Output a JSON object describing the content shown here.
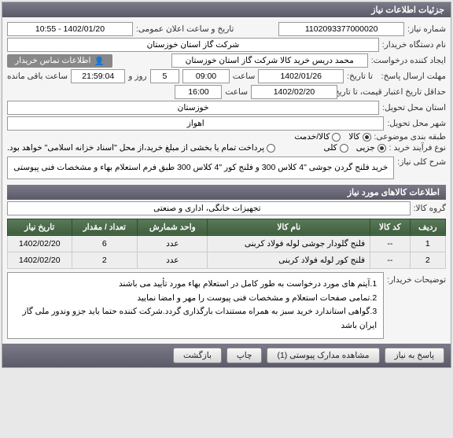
{
  "panel_title": "جزئیات اطلاعات نیاز",
  "labels": {
    "need_no": "شماره نیاز:",
    "ann_date": "تاریخ و ساعت اعلان عمومی:",
    "buyer_org": "نام دستگاه خریدار:",
    "req_creator": "ایجاد کننده درخواست:",
    "buyer_contact": "اطلاعات تماس خریدار",
    "deadline": "مهلت ارسال پاسخ:",
    "up_to": "تا تاریخ:",
    "time_word": "ساعت",
    "and_word": "و",
    "day_word": "روز",
    "remaining": "ساعت باقی مانده",
    "validity": "حداقل تاریخ اعتبار قیمت، تا تاریخ:",
    "province": "استان محل تحویل:",
    "city": "شهر محل تحویل:",
    "subject_class": "طبقه بندی موضوعی:",
    "purchase_type": "نوع فرآیند خرید :",
    "partial_note": "پرداخت تمام یا بخشی از مبلغ خرید،از محل \"اسناد خزانه اسلامی\" خواهد بود.",
    "general_desc": "شرح کلی نیاز:",
    "items_header": "اطلاعات کالاهای مورد نیاز",
    "goods_group": "گروه کالا:",
    "buyer_notes": "توضیحات خریدار:"
  },
  "fields": {
    "need_no": "1102093377000020",
    "ann_date": "1402/01/20 - 10:55",
    "buyer_org": "شرکت گاز استان خوزستان",
    "req_creator": "محمد دریس خرید کالا شرکت گاز استان خوزستان",
    "deadline_date": "1402/01/26",
    "deadline_time": "09:00",
    "days_left": "5",
    "hours_left": "21:59:04",
    "validity_date": "1402/02/20",
    "validity_time": "16:00",
    "province": "خوزستان",
    "city": "اهواز",
    "goods_group": "تجهیزات خانگی، اداری و صنعتی"
  },
  "subject_options": [
    {
      "label": "کالا",
      "checked": true
    },
    {
      "label": "کالا/خدمت",
      "checked": false
    }
  ],
  "purchase_options": [
    {
      "label": "جزیی",
      "checked": true
    },
    {
      "label": "کلی",
      "checked": false
    }
  ],
  "general_desc": "خرید فلنج گردن جوشی \"4 کلاس 300 و فلنج کور \"4 کلاس 300 طبق فرم استعلام بهاء و مشخصات فنی پیوستی",
  "table": {
    "headers": [
      "ردیف",
      "کد کالا",
      "نام کالا",
      "واحد شمارش",
      "تعداد / مقدار",
      "تاریخ نیاز"
    ],
    "rows": [
      [
        "1",
        "--",
        "فلنج گلودار جوشی لوله فولاد کربنی",
        "عدد",
        "6",
        "1402/02/20"
      ],
      [
        "2",
        "--",
        "فلنج کور لوله فولاد کربنی",
        "عدد",
        "2",
        "1402/02/20"
      ]
    ]
  },
  "buyer_notes": [
    "1.آیتم های مورد درخواست به طور کامل در استعلام بهاء مورد تأیید می باشند",
    "2.تمامی صفحات استعلام و مشخصات فنی پیوست را مهر و امضا نمایید",
    "3.گواهی استاندارد خرید سبز به همراه مستندات بارگذاری گردد.شرکت کننده حتما باید جزو وندور ملی گاز ایران باشد"
  ],
  "buttons": {
    "reply": "پاسخ به نیاز",
    "attachments": "مشاهده مدارک پیوستی (1)",
    "print": "چاپ",
    "back": "بازگشت"
  }
}
